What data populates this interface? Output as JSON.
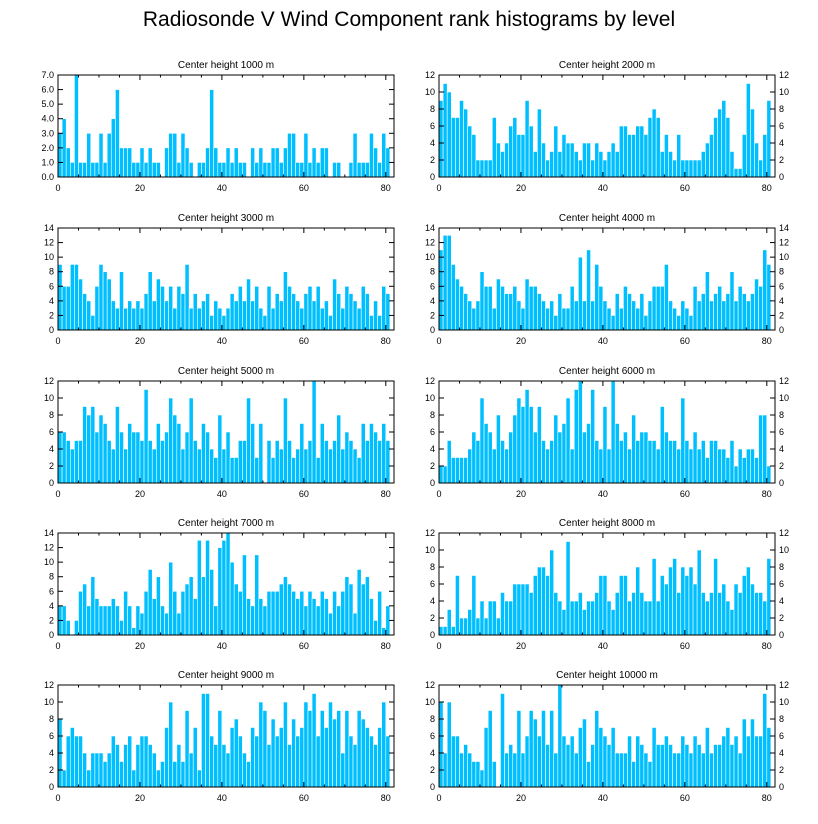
{
  "title": "Radiosonde V Wind Component rank histograms by level",
  "colors": {
    "bar": "#00bfff",
    "bar_edge": "#ffffff",
    "axis": "#000000"
  },
  "chart_data": [
    {
      "type": "bar",
      "title": "Center height 1000 m",
      "xlim": [
        0,
        82
      ],
      "ylim": [
        0,
        7
      ],
      "xticks": [
        0,
        20,
        40,
        60,
        80
      ],
      "yticks": [
        0,
        1,
        2,
        3,
        4,
        5,
        6,
        7
      ],
      "ytick_labels": [
        "0.0",
        "1.0",
        "2.0",
        "3.0",
        "4.0",
        "5.0",
        "6.0",
        "7.0"
      ],
      "values": [
        3,
        4,
        2,
        1,
        7,
        1,
        1,
        3,
        1,
        1,
        3,
        1,
        3,
        4,
        6,
        2,
        2,
        2,
        1,
        1,
        2,
        1,
        2,
        1,
        1,
        0,
        2,
        3,
        3,
        1,
        3,
        2,
        1,
        0,
        1,
        1,
        2,
        6,
        2,
        1,
        1,
        2,
        1,
        2,
        1,
        1,
        0,
        2,
        1,
        2,
        1,
        1,
        2,
        2,
        1,
        2,
        3,
        3,
        1,
        1,
        3,
        1,
        2,
        1,
        2,
        2,
        0,
        1,
        1,
        0,
        0,
        1,
        3,
        1,
        1,
        1,
        3,
        2,
        1,
        3,
        2
      ],
      "y_right_labels": false
    },
    {
      "type": "bar",
      "title": "Center height 2000 m",
      "xlim": [
        0,
        82
      ],
      "ylim": [
        0,
        12
      ],
      "xticks": [
        0,
        20,
        40,
        60,
        80
      ],
      "yticks": [
        0,
        2,
        4,
        6,
        8,
        10,
        12
      ],
      "ytick_labels": [
        "0",
        "2",
        "4",
        "6",
        "8",
        "10",
        "12"
      ],
      "values": [
        9,
        11,
        10,
        7,
        7,
        9,
        8,
        6,
        5,
        2,
        2,
        2,
        2,
        7,
        4,
        3,
        4,
        6,
        7,
        5,
        5,
        9,
        6,
        3,
        8,
        4,
        2,
        3,
        6,
        3,
        5,
        4,
        4,
        3,
        2,
        4,
        4,
        2,
        4,
        3,
        2,
        3,
        4,
        3,
        6,
        6,
        5,
        5,
        6,
        6,
        5,
        7,
        8,
        7,
        3,
        5,
        3,
        2,
        5,
        2,
        2,
        2,
        2,
        2,
        3,
        4,
        5,
        7,
        8,
        9,
        7,
        3,
        1,
        1,
        5,
        11,
        8,
        4,
        2,
        5,
        9
      ],
      "y_right_labels": true
    },
    {
      "type": "bar",
      "title": "Center height 3000 m",
      "xlim": [
        0,
        82
      ],
      "ylim": [
        0,
        14
      ],
      "xticks": [
        0,
        20,
        40,
        60,
        80
      ],
      "yticks": [
        0,
        2,
        4,
        6,
        8,
        10,
        12,
        14
      ],
      "ytick_labels": [
        "0",
        "2",
        "4",
        "6",
        "8",
        "10",
        "12",
        "14"
      ],
      "values": [
        9,
        6,
        6,
        9,
        9,
        7,
        5,
        4,
        2,
        6,
        9,
        8,
        7,
        4,
        3,
        8,
        3,
        4,
        3,
        4,
        3,
        5,
        8,
        4,
        7,
        6,
        4,
        6,
        3,
        6,
        5,
        9,
        3,
        5,
        3,
        4,
        5,
        2,
        4,
        3,
        2,
        3,
        5,
        4,
        6,
        4,
        7,
        4,
        6,
        3,
        2,
        6,
        3,
        5,
        4,
        8,
        6,
        5,
        4,
        3,
        5,
        6,
        4,
        6,
        3,
        4,
        2,
        7,
        5,
        3,
        6,
        5,
        4,
        3,
        6,
        5,
        2,
        4,
        2,
        6,
        5
      ],
      "y_right_labels": false
    },
    {
      "type": "bar",
      "title": "Center height 4000 m",
      "xlim": [
        0,
        82
      ],
      "ylim": [
        0,
        14
      ],
      "xticks": [
        0,
        20,
        40,
        60,
        80
      ],
      "yticks": [
        0,
        2,
        4,
        6,
        8,
        10,
        12,
        14
      ],
      "ytick_labels": [
        "0",
        "2",
        "4",
        "6",
        "8",
        "10",
        "12",
        "14"
      ],
      "values": [
        11,
        13,
        13,
        9,
        7,
        6,
        5,
        4,
        3,
        4,
        8,
        6,
        6,
        3,
        7,
        6,
        5,
        5,
        6,
        4,
        3,
        7,
        6,
        6,
        5,
        4,
        3,
        4,
        2,
        5,
        3,
        3,
        6,
        4,
        10,
        4,
        11,
        4,
        9,
        6,
        4,
        3,
        2,
        5,
        3,
        6,
        5,
        4,
        3,
        5,
        2,
        4,
        6,
        6,
        6,
        9,
        4,
        3,
        2,
        4,
        3,
        2,
        6,
        4,
        5,
        8,
        4,
        5,
        6,
        4,
        5,
        8,
        4,
        6,
        5,
        4,
        5,
        7,
        6,
        11,
        9
      ],
      "y_right_labels": true
    },
    {
      "type": "bar",
      "title": "Center height 5000 m",
      "xlim": [
        0,
        82
      ],
      "ylim": [
        0,
        12
      ],
      "xticks": [
        0,
        20,
        40,
        60,
        80
      ],
      "yticks": [
        0,
        2,
        4,
        6,
        8,
        10,
        12
      ],
      "ytick_labels": [
        "0",
        "2",
        "4",
        "6",
        "8",
        "10",
        "12"
      ],
      "values": [
        6,
        6,
        5,
        4,
        5,
        5,
        9,
        8,
        9,
        6,
        8,
        7,
        5,
        4,
        9,
        6,
        4,
        7,
        6,
        6,
        5,
        11,
        5,
        4,
        7,
        5,
        6,
        10,
        8,
        7,
        4,
        6,
        10,
        5,
        4,
        7,
        6,
        4,
        3,
        8,
        4,
        6,
        3,
        3,
        5,
        5,
        10,
        7,
        3,
        7,
        0,
        5,
        3,
        5,
        4,
        10,
        5,
        3,
        4,
        7,
        4,
        5,
        12,
        3,
        7,
        5,
        4,
        5,
        8,
        4,
        6,
        5,
        4,
        3,
        7,
        5,
        7,
        6,
        5,
        7,
        5
      ],
      "y_right_labels": false
    },
    {
      "type": "bar",
      "title": "Center height 6000 m",
      "xlim": [
        0,
        82
      ],
      "ylim": [
        0,
        12
      ],
      "xticks": [
        0,
        20,
        40,
        60,
        80
      ],
      "yticks": [
        0,
        2,
        4,
        6,
        8,
        10,
        12
      ],
      "ytick_labels": [
        "0",
        "2",
        "4",
        "6",
        "8",
        "10",
        "12"
      ],
      "values": [
        2,
        2,
        5,
        3,
        3,
        3,
        3,
        4,
        6,
        5,
        10,
        7,
        6,
        4,
        8,
        5,
        4,
        6,
        8,
        10,
        9,
        11,
        9,
        6,
        9,
        5,
        4,
        5,
        8,
        6,
        7,
        10,
        4,
        11,
        12,
        6,
        7,
        11,
        5,
        4,
        9,
        4,
        12,
        7,
        5,
        6,
        4,
        8,
        5,
        6,
        6,
        5,
        5,
        4,
        9,
        6,
        5,
        5,
        4,
        10,
        5,
        4,
        6,
        4,
        5,
        3,
        5,
        5,
        4,
        4,
        3,
        5,
        2,
        4,
        3,
        4,
        4,
        3,
        8,
        8,
        2
      ],
      "y_right_labels": true
    },
    {
      "type": "bar",
      "title": "Center height 7000 m",
      "xlim": [
        0,
        82
      ],
      "ylim": [
        0,
        14
      ],
      "xticks": [
        0,
        20,
        40,
        60,
        80
      ],
      "yticks": [
        0,
        2,
        4,
        6,
        8,
        10,
        12,
        14
      ],
      "ytick_labels": [
        "0",
        "2",
        "4",
        "6",
        "8",
        "10",
        "12",
        "14"
      ],
      "values": [
        4,
        4,
        2,
        0,
        2,
        6,
        7,
        4,
        8,
        5,
        4,
        4,
        4,
        5,
        4,
        2,
        6,
        4,
        1,
        4,
        3,
        6,
        9,
        5,
        8,
        4,
        3,
        10,
        6,
        3,
        6,
        7,
        8,
        5,
        13,
        8,
        13,
        9,
        4,
        12,
        13,
        14,
        10,
        7,
        6,
        11,
        5,
        4,
        11,
        5,
        4,
        6,
        6,
        6,
        7,
        8,
        7,
        6,
        5,
        6,
        4,
        6,
        5,
        4,
        6,
        5,
        3,
        6,
        4,
        6,
        8,
        7,
        3,
        9,
        7,
        8,
        5,
        2,
        6,
        1,
        4
      ],
      "y_right_labels": false
    },
    {
      "type": "bar",
      "title": "Center height 8000 m",
      "xlim": [
        0,
        82
      ],
      "ylim": [
        0,
        12
      ],
      "xticks": [
        0,
        20,
        40,
        60,
        80
      ],
      "yticks": [
        0,
        2,
        4,
        6,
        8,
        10,
        12
      ],
      "ytick_labels": [
        "0",
        "2",
        "4",
        "6",
        "8",
        "10",
        "12"
      ],
      "values": [
        1,
        1,
        3,
        1,
        7,
        2,
        2,
        3,
        7,
        2,
        4,
        2,
        4,
        4,
        2,
        5,
        4,
        4,
        6,
        6,
        6,
        6,
        5,
        7,
        8,
        8,
        7,
        10,
        5,
        4,
        3,
        11,
        4,
        4,
        5,
        3,
        4,
        4,
        5,
        7,
        7,
        4,
        3,
        5,
        7,
        7,
        4,
        5,
        8,
        5,
        4,
        4,
        9,
        4,
        7,
        6,
        8,
        9,
        5,
        8,
        7,
        8,
        6,
        10,
        5,
        4,
        5,
        9,
        5,
        6,
        4,
        3,
        6,
        5,
        7,
        8,
        6,
        5,
        5,
        4,
        9
      ],
      "y_right_labels": true
    },
    {
      "type": "bar",
      "title": "Center height 9000 m",
      "xlim": [
        0,
        82
      ],
      "ylim": [
        0,
        12
      ],
      "xticks": [
        0,
        20,
        40,
        60,
        80
      ],
      "yticks": [
        0,
        2,
        4,
        6,
        8,
        10,
        12
      ],
      "ytick_labels": [
        "0",
        "2",
        "4",
        "6",
        "8",
        "10",
        "12"
      ],
      "values": [
        8,
        2,
        6,
        7,
        6,
        6,
        4,
        2,
        4,
        4,
        4,
        3,
        4,
        6,
        5,
        3,
        5,
        6,
        2,
        5,
        6,
        6,
        5,
        4,
        2,
        3,
        7,
        10,
        3,
        5,
        3,
        9,
        4,
        7,
        2,
        11,
        11,
        6,
        5,
        9,
        5,
        4,
        7,
        8,
        6,
        4,
        3,
        7,
        6,
        10,
        9,
        5,
        8,
        6,
        7,
        10,
        5,
        8,
        6,
        7,
        10,
        9,
        11,
        6,
        9,
        7,
        10,
        8,
        9,
        4,
        9,
        6,
        5,
        9,
        8,
        7,
        6,
        5,
        7,
        10,
        6
      ],
      "y_right_labels": false
    },
    {
      "type": "bar",
      "title": "Center height 10000 m",
      "xlim": [
        0,
        82
      ],
      "ylim": [
        0,
        12
      ],
      "xticks": [
        0,
        20,
        40,
        60,
        80
      ],
      "yticks": [
        0,
        2,
        4,
        6,
        8,
        10,
        12
      ],
      "ytick_labels": [
        "0",
        "2",
        "4",
        "6",
        "8",
        "10",
        "12"
      ],
      "values": [
        10,
        4,
        10,
        6,
        6,
        4,
        5,
        4,
        3,
        3,
        2,
        7,
        9,
        3,
        0,
        11,
        4,
        5,
        4,
        9,
        4,
        6,
        9,
        8,
        6,
        9,
        5,
        9,
        4,
        12,
        6,
        5,
        6,
        4,
        7,
        8,
        3,
        5,
        9,
        7,
        6,
        5,
        7,
        4,
        4,
        4,
        6,
        3,
        6,
        5,
        4,
        3,
        7,
        5,
        5,
        6,
        5,
        4,
        4,
        6,
        5,
        4,
        6,
        5,
        4,
        7,
        4,
        5,
        5,
        6,
        7,
        5,
        6,
        4,
        8,
        6,
        8,
        6,
        6,
        11,
        7
      ],
      "y_right_labels": true
    }
  ]
}
